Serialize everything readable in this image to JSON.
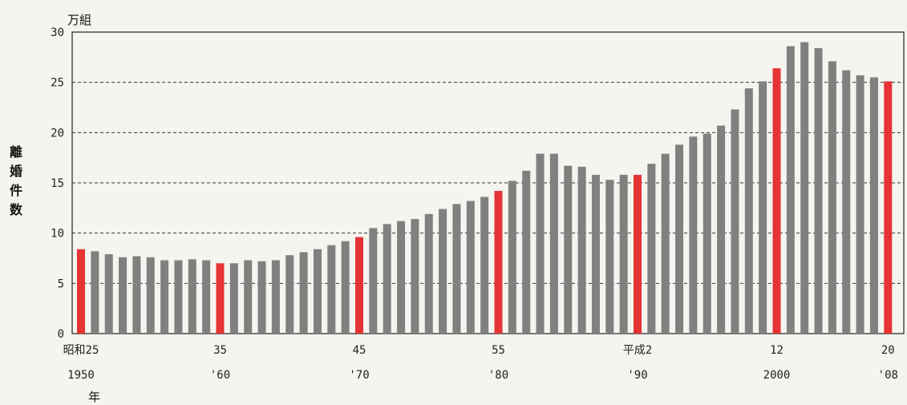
{
  "chart_data": {
    "type": "bar",
    "title": "",
    "ylabel": "離婚件数",
    "yunit": "万組",
    "xunit": "年",
    "ylim": [
      0,
      30
    ],
    "yticks": [
      "0",
      "5",
      "10",
      "15",
      "20",
      "25",
      "30"
    ],
    "grid": "horizontal-dashed",
    "years": [
      1950,
      1951,
      1952,
      1953,
      1954,
      1955,
      1956,
      1957,
      1958,
      1959,
      1960,
      1961,
      1962,
      1963,
      1964,
      1965,
      1966,
      1967,
      1968,
      1969,
      1970,
      1971,
      1972,
      1973,
      1974,
      1975,
      1976,
      1977,
      1978,
      1979,
      1980,
      1981,
      1982,
      1983,
      1984,
      1985,
      1986,
      1987,
      1988,
      1989,
      1990,
      1991,
      1992,
      1993,
      1994,
      1995,
      1996,
      1997,
      1998,
      1999,
      2000,
      2001,
      2002,
      2003,
      2004,
      2005,
      2006,
      2007,
      2008
    ],
    "values": [
      8.4,
      8.2,
      7.9,
      7.6,
      7.7,
      7.6,
      7.3,
      7.3,
      7.4,
      7.3,
      7.0,
      7.0,
      7.3,
      7.2,
      7.3,
      7.8,
      8.1,
      8.4,
      8.8,
      9.2,
      9.6,
      10.5,
      10.9,
      11.2,
      11.4,
      11.9,
      12.4,
      12.9,
      13.2,
      13.6,
      14.2,
      15.2,
      16.2,
      17.9,
      17.9,
      16.7,
      16.6,
      15.8,
      15.3,
      15.8,
      15.8,
      16.9,
      17.9,
      18.8,
      19.6,
      19.9,
      20.7,
      22.3,
      24.4,
      25.1,
      26.4,
      28.6,
      29.0,
      28.4,
      27.1,
      26.2,
      25.7,
      25.5,
      25.1
    ],
    "highlight_color": "#e63333",
    "bar_color": "#808080",
    "highlighted_years": [
      1950,
      1960,
      1970,
      1980,
      1990,
      2000,
      2008
    ],
    "x_labels": [
      {
        "year": 1950,
        "era": "昭和25",
        "western": "1950"
      },
      {
        "year": 1960,
        "era": "35",
        "western": "'60"
      },
      {
        "year": 1970,
        "era": "45",
        "western": "'70"
      },
      {
        "year": 1980,
        "era": "55",
        "western": "'80"
      },
      {
        "year": 1990,
        "era": "平成2",
        "western": "'90"
      },
      {
        "year": 2000,
        "era": "12",
        "western": "2000"
      },
      {
        "year": 2008,
        "era": "20",
        "western": "'08"
      }
    ]
  }
}
